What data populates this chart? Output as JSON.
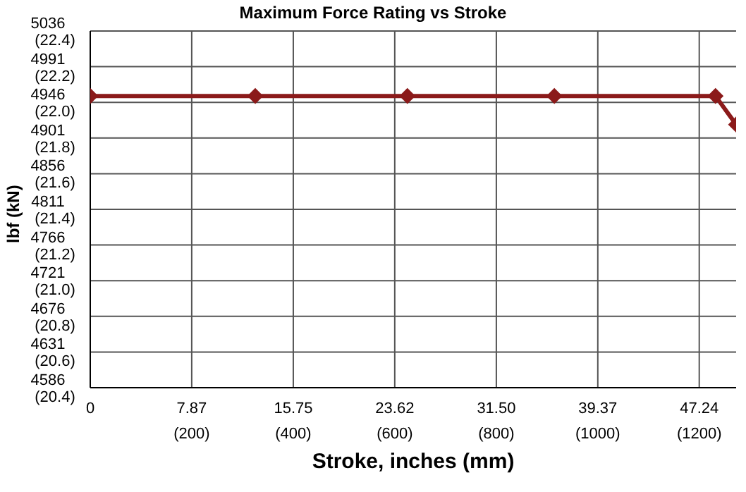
{
  "chart_data": {
    "type": "line",
    "title": "Maximum Force Rating vs Stroke",
    "xlabel": "Stroke, inches (mm)",
    "ylabel": "lbf (kN)",
    "x": [
      0,
      12.8,
      24.6,
      36.0,
      48.5,
      50.1
    ],
    "series": [
      {
        "color": "#8b1a1a",
        "values": [
          4954,
          4954,
          4954,
          4954,
          4954,
          4918
        ]
      }
    ],
    "xlim": [
      0,
      50.1
    ],
    "xticks": [
      0,
      7.87,
      15.75,
      23.62,
      {
        "value": 31.5,
        "label": "31.50"
      },
      39.37,
      47.24
    ],
    "x2lim": [
      0,
      1272.5
    ],
    "x2ticks": [
      {
        "value": 200,
        "label": "(200)"
      },
      {
        "value": 400,
        "label": "(400)"
      },
      {
        "value": 600,
        "label": "(600)"
      },
      {
        "value": 800,
        "label": "(800)"
      },
      {
        "value": 1000,
        "label": "(1000)"
      },
      {
        "value": 1200,
        "label": "(1200)"
      }
    ],
    "ylim": [
      4586,
      5036
    ],
    "yticks": [
      4586,
      4631,
      4676,
      4721,
      4766,
      4811,
      4856,
      4901,
      4946,
      4991,
      5036
    ],
    "y2lim": [
      20.4,
      22.4
    ],
    "y2ticks": [
      {
        "value": 20.4,
        "label": "(20.4)"
      },
      {
        "value": 20.6,
        "label": "(20.6)"
      },
      {
        "value": 20.8,
        "label": "(20.8)"
      },
      {
        "value": 21.0,
        "label": "(21.0)"
      },
      {
        "value": 21.2,
        "label": "(21.2)"
      },
      {
        "value": 21.4,
        "label": "(21.4)"
      },
      {
        "value": 21.6,
        "label": "(21.6)"
      },
      {
        "value": 21.8,
        "label": "(21.8)"
      },
      {
        "value": 22.0,
        "label": "(22.0)"
      },
      {
        "value": 22.2,
        "label": "(22.2)"
      },
      {
        "value": 22.4,
        "label": "(22.4)"
      }
    ],
    "grid": true,
    "marker": "diamond",
    "line_style": "solid",
    "legend": false
  }
}
